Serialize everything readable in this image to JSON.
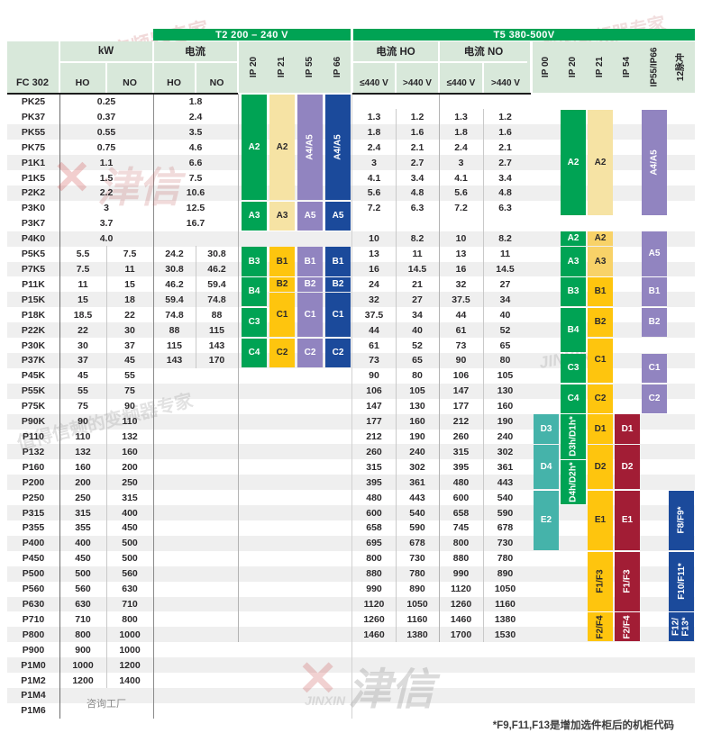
{
  "page": {
    "footnote": "*F9,F11,F13是增加选件柜后的机柜代码",
    "consult_factory": "咨询工厂"
  },
  "header": {
    "t2_band": "T2 200 – 240 V",
    "t5_band": "T5 380-500V",
    "fc302": "FC 302",
    "kw": "kW",
    "ho": "HO",
    "no": "NO",
    "current_t2": "电流",
    "current_ho": "电流 HO",
    "current_no": "电流 NO",
    "le440": "≤440 V",
    "gt440": ">440 V",
    "t2_ip": [
      "IP 20",
      "IP 21",
      "IP 55",
      "IP 66"
    ],
    "t5_ip": [
      "IP 00",
      "IP 20",
      "IP 21",
      "IP 54",
      "IP55/IP66",
      "12脉冲"
    ]
  },
  "colors": {
    "band": "#00A354",
    "lightGreen": "#D8E8DA",
    "green": "#00A354",
    "paleYellow": "#F6E3A4",
    "midYellow": "#F8D268",
    "gold": "#FEC50E",
    "purple": "#9184C0",
    "blue": "#1B4A9B",
    "teal": "#45B3AA",
    "maroon": "#A21D35",
    "stripe": "#EFEFEF",
    "textDark": "#2c2a2c",
    "textLight": "#ffffff"
  },
  "rows": [
    {
      "model": "PK25",
      "kw": [
        "0.25"
      ],
      "t2": [
        "1.8"
      ],
      "t5": []
    },
    {
      "model": "PK37",
      "kw": [
        "0.37"
      ],
      "t2": [
        "2.4"
      ],
      "t5": [
        "1.3",
        "1.2",
        "1.3",
        "1.2"
      ]
    },
    {
      "model": "PK55",
      "kw": [
        "0.55"
      ],
      "t2": [
        "3.5"
      ],
      "t5": [
        "1.8",
        "1.6",
        "1.8",
        "1.6"
      ]
    },
    {
      "model": "PK75",
      "kw": [
        "0.75"
      ],
      "t2": [
        "4.6"
      ],
      "t5": [
        "2.4",
        "2.1",
        "2.4",
        "2.1"
      ]
    },
    {
      "model": "P1K1",
      "kw": [
        "1.1"
      ],
      "t2": [
        "6.6"
      ],
      "t5": [
        "3",
        "2.7",
        "3",
        "2.7"
      ]
    },
    {
      "model": "P1K5",
      "kw": [
        "1.5"
      ],
      "t2": [
        "7.5"
      ],
      "t5": [
        "4.1",
        "3.4",
        "4.1",
        "3.4"
      ]
    },
    {
      "model": "P2K2",
      "kw": [
        "2.2"
      ],
      "t2": [
        "10.6"
      ],
      "t5": [
        "5.6",
        "4.8",
        "5.6",
        "4.8"
      ]
    },
    {
      "model": "P3K0",
      "kw": [
        "3"
      ],
      "t2": [
        "12.5"
      ],
      "t5": [
        "7.2",
        "6.3",
        "7.2",
        "6.3"
      ]
    },
    {
      "model": "P3K7",
      "kw": [
        "3.7"
      ],
      "t2": [
        "16.7"
      ],
      "t5": []
    },
    {
      "model": "P4K0",
      "kw": [
        "4.0"
      ],
      "t2": [],
      "t5": [
        "10",
        "8.2",
        "10",
        "8.2"
      ]
    },
    {
      "model": "P5K5",
      "kw": [
        "5.5",
        "7.5"
      ],
      "t2": [
        "24.2",
        "30.8"
      ],
      "t5": [
        "13",
        "11",
        "13",
        "11"
      ]
    },
    {
      "model": "P7K5",
      "kw": [
        "7.5",
        "11"
      ],
      "t2": [
        "30.8",
        "46.2"
      ],
      "t5": [
        "16",
        "14.5",
        "16",
        "14.5"
      ]
    },
    {
      "model": "P11K",
      "kw": [
        "11",
        "15"
      ],
      "t2": [
        "46.2",
        "59.4"
      ],
      "t5": [
        "24",
        "21",
        "32",
        "27"
      ]
    },
    {
      "model": "P15K",
      "kw": [
        "15",
        "18"
      ],
      "t2": [
        "59.4",
        "74.8"
      ],
      "t5": [
        "32",
        "27",
        "37.5",
        "34"
      ]
    },
    {
      "model": "P18K",
      "kw": [
        "18.5",
        "22"
      ],
      "t2": [
        "74.8",
        "88"
      ],
      "t5": [
        "37.5",
        "34",
        "44",
        "40"
      ]
    },
    {
      "model": "P22K",
      "kw": [
        "22",
        "30"
      ],
      "t2": [
        "88",
        "115"
      ],
      "t5": [
        "44",
        "40",
        "61",
        "52"
      ]
    },
    {
      "model": "P30K",
      "kw": [
        "30",
        "37"
      ],
      "t2": [
        "115",
        "143"
      ],
      "t5": [
        "61",
        "52",
        "73",
        "65"
      ]
    },
    {
      "model": "P37K",
      "kw": [
        "37",
        "45"
      ],
      "t2": [
        "143",
        "170"
      ],
      "t5": [
        "73",
        "65",
        "90",
        "80"
      ]
    },
    {
      "model": "P45K",
      "kw": [
        "45",
        "55"
      ],
      "t2": [],
      "t5": [
        "90",
        "80",
        "106",
        "105"
      ]
    },
    {
      "model": "P55K",
      "kw": [
        "55",
        "75"
      ],
      "t2": [],
      "t5": [
        "106",
        "105",
        "147",
        "130"
      ]
    },
    {
      "model": "P75K",
      "kw": [
        "75",
        "90"
      ],
      "t2": [],
      "t5": [
        "147",
        "130",
        "177",
        "160"
      ]
    },
    {
      "model": "P90K",
      "kw": [
        "90",
        "110"
      ],
      "t2": [],
      "t5": [
        "177",
        "160",
        "212",
        "190"
      ]
    },
    {
      "model": "P110",
      "kw": [
        "110",
        "132"
      ],
      "t2": [],
      "t5": [
        "212",
        "190",
        "260",
        "240"
      ]
    },
    {
      "model": "P132",
      "kw": [
        "132",
        "160"
      ],
      "t2": [],
      "t5": [
        "260",
        "240",
        "315",
        "302"
      ]
    },
    {
      "model": "P160",
      "kw": [
        "160",
        "200"
      ],
      "t2": [],
      "t5": [
        "315",
        "302",
        "395",
        "361"
      ]
    },
    {
      "model": "P200",
      "kw": [
        "200",
        "250"
      ],
      "t2": [],
      "t5": [
        "395",
        "361",
        "480",
        "443"
      ]
    },
    {
      "model": "P250",
      "kw": [
        "250",
        "315"
      ],
      "t2": [],
      "t5": [
        "480",
        "443",
        "600",
        "540"
      ]
    },
    {
      "model": "P315",
      "kw": [
        "315",
        "400"
      ],
      "t2": [],
      "t5": [
        "600",
        "540",
        "658",
        "590"
      ]
    },
    {
      "model": "P355",
      "kw": [
        "355",
        "450"
      ],
      "t2": [],
      "t5": [
        "658",
        "590",
        "745",
        "678"
      ]
    },
    {
      "model": "P400",
      "kw": [
        "400",
        "500"
      ],
      "t2": [],
      "t5": [
        "695",
        "678",
        "800",
        "730"
      ]
    },
    {
      "model": "P450",
      "kw": [
        "450",
        "500"
      ],
      "t2": [],
      "t5": [
        "800",
        "730",
        "880",
        "780"
      ]
    },
    {
      "model": "P500",
      "kw": [
        "500",
        "560"
      ],
      "t2": [],
      "t5": [
        "880",
        "780",
        "990",
        "890"
      ]
    },
    {
      "model": "P560",
      "kw": [
        "560",
        "630"
      ],
      "t2": [],
      "t5": [
        "990",
        "890",
        "1120",
        "1050"
      ]
    },
    {
      "model": "P630",
      "kw": [
        "630",
        "710"
      ],
      "t2": [],
      "t5": [
        "1120",
        "1050",
        "1260",
        "1160"
      ]
    },
    {
      "model": "P710",
      "kw": [
        "710",
        "800"
      ],
      "t2": [],
      "t5": [
        "1260",
        "1160",
        "1460",
        "1380"
      ]
    },
    {
      "model": "P800",
      "kw": [
        "800",
        "1000"
      ],
      "t2": [],
      "t5": [
        "1460",
        "1380",
        "1700",
        "1530"
      ]
    },
    {
      "model": "P900",
      "kw": [
        "900",
        "1000"
      ],
      "t2": [],
      "t5": []
    },
    {
      "model": "P1M0",
      "kw": [
        "1000",
        "1200"
      ],
      "t2": [],
      "t5": []
    },
    {
      "model": "P1M2",
      "kw": [
        "1200",
        "1400"
      ],
      "t2": [],
      "t5": []
    },
    {
      "model": "P1M4",
      "kw": [],
      "t2": [],
      "t5": []
    },
    {
      "model": "P1M6",
      "kw": [],
      "t2": [],
      "t5": []
    }
  ],
  "frame_columns": [
    {
      "col": "t2ip20",
      "blocks": [
        {
          "l": "A2",
          "r": 0,
          "s": 7,
          "c": "green",
          "t": "w"
        },
        {
          "l": "A3",
          "r": 7,
          "s": 2,
          "c": "green",
          "t": "w"
        },
        {
          "l": "B3",
          "r": 10,
          "s": 2,
          "c": "green",
          "t": "w"
        },
        {
          "l": "B4",
          "r": 12,
          "s": 2,
          "c": "green",
          "t": "w"
        },
        {
          "l": "C3",
          "r": 14,
          "s": 2,
          "c": "green",
          "t": "w"
        },
        {
          "l": "C4",
          "r": 16,
          "s": 2,
          "c": "green",
          "t": "w"
        }
      ]
    },
    {
      "col": "t2ip21",
      "blocks": [
        {
          "l": "A2",
          "r": 0,
          "s": 7,
          "c": "paleYellow",
          "t": "d"
        },
        {
          "l": "A3",
          "r": 7,
          "s": 2,
          "c": "paleYellow",
          "t": "d"
        },
        {
          "l": "B1",
          "r": 10,
          "s": 2,
          "c": "gold",
          "t": "d"
        },
        {
          "l": "B2",
          "r": 12,
          "s": 1,
          "c": "gold",
          "t": "d"
        },
        {
          "l": "C1",
          "r": 13,
          "s": 3,
          "c": "gold",
          "t": "d"
        },
        {
          "l": "C2",
          "r": 16,
          "s": 2,
          "c": "gold",
          "t": "d"
        }
      ]
    },
    {
      "col": "t2ip55",
      "blocks": [
        {
          "l": "A4/A5",
          "r": 0,
          "s": 7,
          "c": "purple",
          "t": "w",
          "rot": 1
        },
        {
          "l": "A5",
          "r": 7,
          "s": 2,
          "c": "purple",
          "t": "w"
        },
        {
          "l": "B1",
          "r": 10,
          "s": 2,
          "c": "purple",
          "t": "w"
        },
        {
          "l": "B2",
          "r": 12,
          "s": 1,
          "c": "purple",
          "t": "w"
        },
        {
          "l": "C1",
          "r": 13,
          "s": 3,
          "c": "purple",
          "t": "w"
        },
        {
          "l": "C2",
          "r": 16,
          "s": 2,
          "c": "purple",
          "t": "w"
        }
      ]
    },
    {
      "col": "t2ip66",
      "blocks": [
        {
          "l": "A4/A5",
          "r": 0,
          "s": 7,
          "c": "blue",
          "t": "w",
          "rot": 1
        },
        {
          "l": "A5",
          "r": 7,
          "s": 2,
          "c": "blue",
          "t": "w"
        },
        {
          "l": "B1",
          "r": 10,
          "s": 2,
          "c": "blue",
          "t": "w"
        },
        {
          "l": "B2",
          "r": 12,
          "s": 1,
          "c": "blue",
          "t": "w"
        },
        {
          "l": "C1",
          "r": 13,
          "s": 3,
          "c": "blue",
          "t": "w"
        },
        {
          "l": "C2",
          "r": 16,
          "s": 2,
          "c": "blue",
          "t": "w"
        }
      ]
    },
    {
      "col": "ip00",
      "blocks": [
        {
          "l": "D3",
          "r": 21,
          "s": 2,
          "c": "teal",
          "t": "w"
        },
        {
          "l": "D4",
          "r": 23,
          "s": 3,
          "c": "teal",
          "t": "w"
        },
        {
          "l": "E2",
          "r": 26,
          "s": 4,
          "c": "teal",
          "t": "w"
        }
      ]
    },
    {
      "col": "ip20",
      "blocks": [
        {
          "l": "A2",
          "r": 1,
          "s": 7,
          "c": "green",
          "t": "w"
        },
        {
          "l": "A2",
          "r": 9,
          "s": 1,
          "c": "green",
          "t": "w"
        },
        {
          "l": "A3",
          "r": 10,
          "s": 2,
          "c": "green",
          "t": "w"
        },
        {
          "l": "B3",
          "r": 12,
          "s": 2,
          "c": "green",
          "t": "w"
        },
        {
          "l": "B4",
          "r": 14,
          "s": 3,
          "c": "green",
          "t": "w"
        },
        {
          "l": "C3",
          "r": 17,
          "s": 2,
          "c": "green",
          "t": "w"
        },
        {
          "l": "C4",
          "r": 19,
          "s": 2,
          "c": "green",
          "t": "w"
        },
        {
          "l": "D3h/D1h*",
          "r": 21,
          "s": 3,
          "c": "green",
          "t": "w",
          "rot": 1
        },
        {
          "l": "D4h/D2h*",
          "r": 24,
          "s": 3,
          "c": "green",
          "t": "w",
          "rot": 1
        }
      ]
    },
    {
      "col": "ip21",
      "blocks": [
        {
          "l": "A2",
          "r": 1,
          "s": 7,
          "c": "paleYellow",
          "t": "d"
        },
        {
          "l": "A2",
          "r": 9,
          "s": 1,
          "c": "midYellow",
          "t": "d"
        },
        {
          "l": "A3",
          "r": 10,
          "s": 2,
          "c": "midYellow",
          "t": "d"
        },
        {
          "l": "B1",
          "r": 12,
          "s": 2,
          "c": "gold",
          "t": "d"
        },
        {
          "l": "B2",
          "r": 14,
          "s": 2,
          "c": "gold",
          "t": "d"
        },
        {
          "l": "C1",
          "r": 16,
          "s": 3,
          "c": "gold",
          "t": "d"
        },
        {
          "l": "C2",
          "r": 19,
          "s": 2,
          "c": "gold",
          "t": "d"
        },
        {
          "l": "D1",
          "r": 21,
          "s": 2,
          "c": "gold",
          "t": "d"
        },
        {
          "l": "D2",
          "r": 23,
          "s": 3,
          "c": "gold",
          "t": "d"
        },
        {
          "l": "E1",
          "r": 26,
          "s": 4,
          "c": "gold",
          "t": "d"
        },
        {
          "l": "F1/F3",
          "r": 30,
          "s": 4,
          "c": "gold",
          "t": "d",
          "rot": 1
        },
        {
          "l": "F2/F4",
          "r": 34,
          "s": 2,
          "c": "gold",
          "t": "d",
          "rot": 1
        }
      ]
    },
    {
      "col": "ip54",
      "blocks": [
        {
          "l": "D1",
          "r": 21,
          "s": 2,
          "c": "maroon",
          "t": "w"
        },
        {
          "l": "D2",
          "r": 23,
          "s": 3,
          "c": "maroon",
          "t": "w"
        },
        {
          "l": "E1",
          "r": 26,
          "s": 4,
          "c": "maroon",
          "t": "w"
        },
        {
          "l": "F1/F3",
          "r": 30,
          "s": 4,
          "c": "maroon",
          "t": "w",
          "rot": 1
        },
        {
          "l": "F2/F4",
          "r": 34,
          "s": 2,
          "c": "maroon",
          "t": "w",
          "rot": 1
        }
      ]
    },
    {
      "col": "ip5566",
      "blocks": [
        {
          "l": "A4/A5",
          "r": 1,
          "s": 7,
          "c": "purple",
          "t": "w",
          "rot": 1
        },
        {
          "l": "A5",
          "r": 9,
          "s": 3,
          "c": "purple",
          "t": "w"
        },
        {
          "l": "B1",
          "r": 12,
          "s": 2,
          "c": "purple",
          "t": "w"
        },
        {
          "l": "B2",
          "r": 14,
          "s": 2,
          "c": "purple",
          "t": "w"
        },
        {
          "l": "C1",
          "r": 17,
          "s": 2,
          "c": "purple",
          "t": "w"
        },
        {
          "l": "C2",
          "r": 19,
          "s": 2,
          "c": "purple",
          "t": "w"
        }
      ]
    },
    {
      "col": "p12",
      "blocks": [
        {
          "l": "F8/F9*",
          "r": 26,
          "s": 4,
          "c": "blue",
          "t": "w",
          "rot": 1
        },
        {
          "l": "F10/F11*",
          "r": 30,
          "s": 4,
          "c": "blue",
          "t": "w",
          "rot": 1
        },
        {
          "l": "F12/F13*",
          "r": 34,
          "s": 2,
          "c": "blue",
          "t": "w",
          "rot": 1,
          "lines": [
            "F12/",
            "F13*"
          ]
        }
      ]
    }
  ],
  "watermarks": {
    "slogan": "值得信赖的变频器专家",
    "brand": "津信",
    "brand_latin": "JINXIN",
    "x_mark": "✕"
  }
}
